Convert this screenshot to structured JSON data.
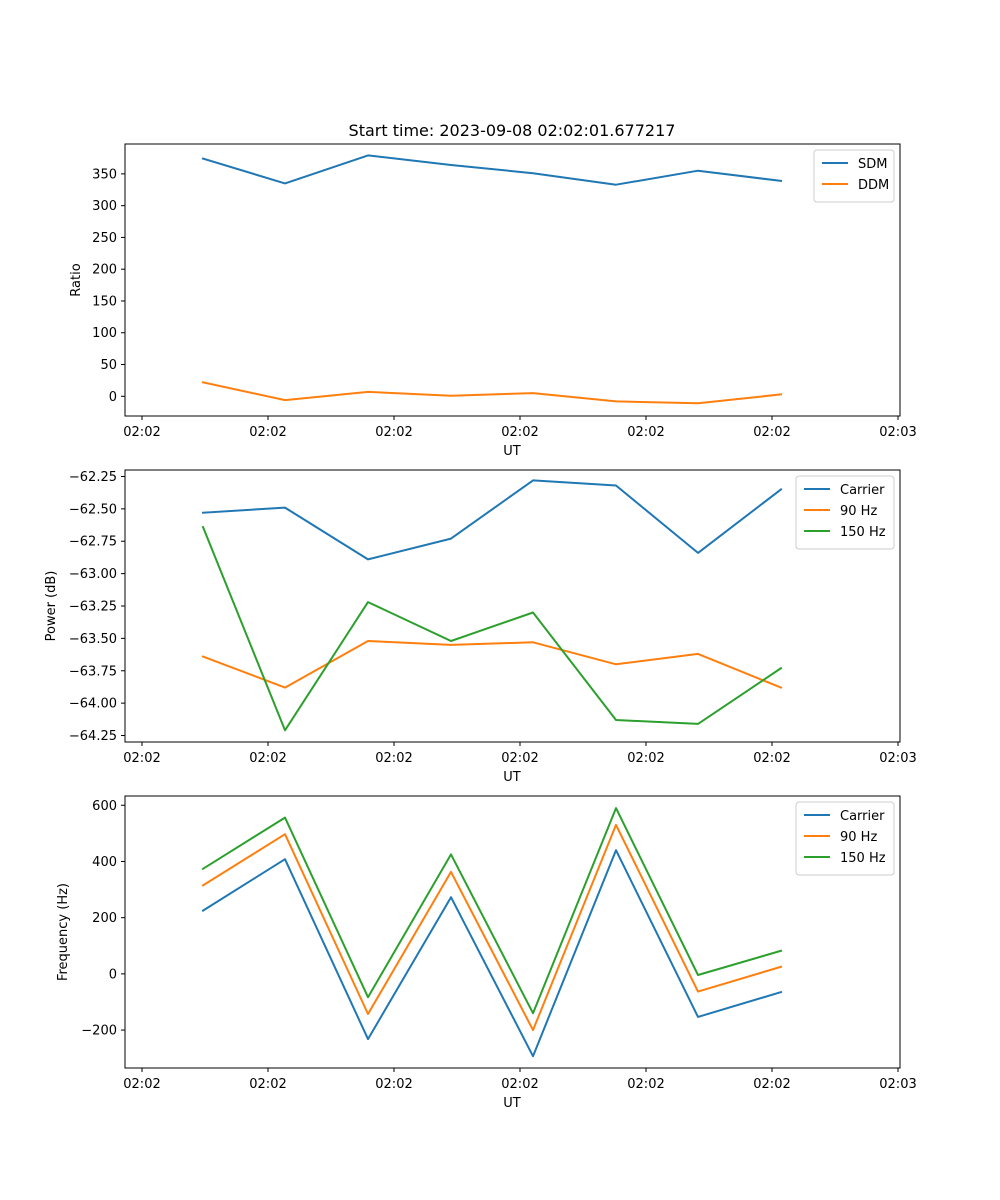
{
  "figure_title": "Start time: 2023-09-08 02:02:01.677217",
  "chart_data": [
    {
      "type": "line",
      "title": "Start time: 2023-09-08 02:02:01.677217",
      "xlabel": "UT",
      "ylabel": "Ratio",
      "x_tick_labels": [
        "02:02",
        "02:02",
        "02:02",
        "02:02",
        "02:02",
        "02:02",
        "02:03"
      ],
      "y_ticks": [
        0,
        50,
        100,
        150,
        200,
        250,
        300,
        350
      ],
      "y_tick_labels": [
        "0",
        "50",
        "100",
        "150",
        "200",
        "250",
        "300",
        "350"
      ],
      "ylim": [
        -31,
        397
      ],
      "legend_position": "upper right",
      "series": [
        {
          "name": "SDM",
          "color": "#1f77b4",
          "values": [
            374,
            335,
            379,
            364,
            351,
            333,
            355,
            339
          ]
        },
        {
          "name": "DDM",
          "color": "#ff7f0e",
          "values": [
            22,
            -6,
            7,
            1,
            5,
            -8,
            -11,
            3
          ]
        }
      ]
    },
    {
      "type": "line",
      "xlabel": "UT",
      "ylabel": "Power (dB)",
      "x_tick_labels": [
        "02:02",
        "02:02",
        "02:02",
        "02:02",
        "02:02",
        "02:02",
        "02:03"
      ],
      "y_ticks": [
        -64.25,
        -64.0,
        -63.75,
        -63.5,
        -63.25,
        -63.0,
        -62.75,
        -62.5,
        -62.25
      ],
      "y_tick_labels": [
        "−64.25",
        "−64.00",
        "−63.75",
        "−63.50",
        "−63.25",
        "−63.00",
        "−62.75",
        "−62.50",
        "−62.25"
      ],
      "ylim": [
        -64.3,
        -62.2
      ],
      "legend_position": "upper right",
      "series": [
        {
          "name": "Carrier",
          "color": "#1f77b4",
          "values": [
            -62.53,
            -62.49,
            -62.89,
            -62.73,
            -62.28,
            -62.32,
            -62.84,
            -62.35
          ]
        },
        {
          "name": "90 Hz",
          "color": "#ff7f0e",
          "values": [
            -63.64,
            -63.88,
            -63.52,
            -63.55,
            -63.53,
            -63.7,
            -63.62,
            -63.88
          ]
        },
        {
          "name": "150 Hz",
          "color": "#2ca02c",
          "values": [
            -62.64,
            -64.21,
            -63.22,
            -63.52,
            -63.3,
            -64.13,
            -64.16,
            -63.73
          ]
        }
      ]
    },
    {
      "type": "line",
      "xlabel": "UT",
      "ylabel": "Frequency (Hz)",
      "x_tick_labels": [
        "02:02",
        "02:02",
        "02:02",
        "02:02",
        "02:02",
        "02:02",
        "02:03"
      ],
      "y_ticks": [
        -200,
        0,
        200,
        400,
        600
      ],
      "y_tick_labels": [
        "−200",
        "0",
        "200",
        "400",
        "600"
      ],
      "ylim": [
        -335,
        633
      ],
      "legend_position": "upper right",
      "series": [
        {
          "name": "Carrier",
          "color": "#1f77b4",
          "values": [
            225,
            408,
            -232,
            273,
            -293,
            440,
            -153,
            -65
          ]
        },
        {
          "name": "90 Hz",
          "color": "#ff7f0e",
          "values": [
            315,
            497,
            -143,
            363,
            -200,
            530,
            -63,
            25
          ]
        },
        {
          "name": "150 Hz",
          "color": "#2ca02c",
          "values": [
            374,
            556,
            -83,
            425,
            -140,
            590,
            -4,
            82
          ]
        }
      ]
    }
  ]
}
